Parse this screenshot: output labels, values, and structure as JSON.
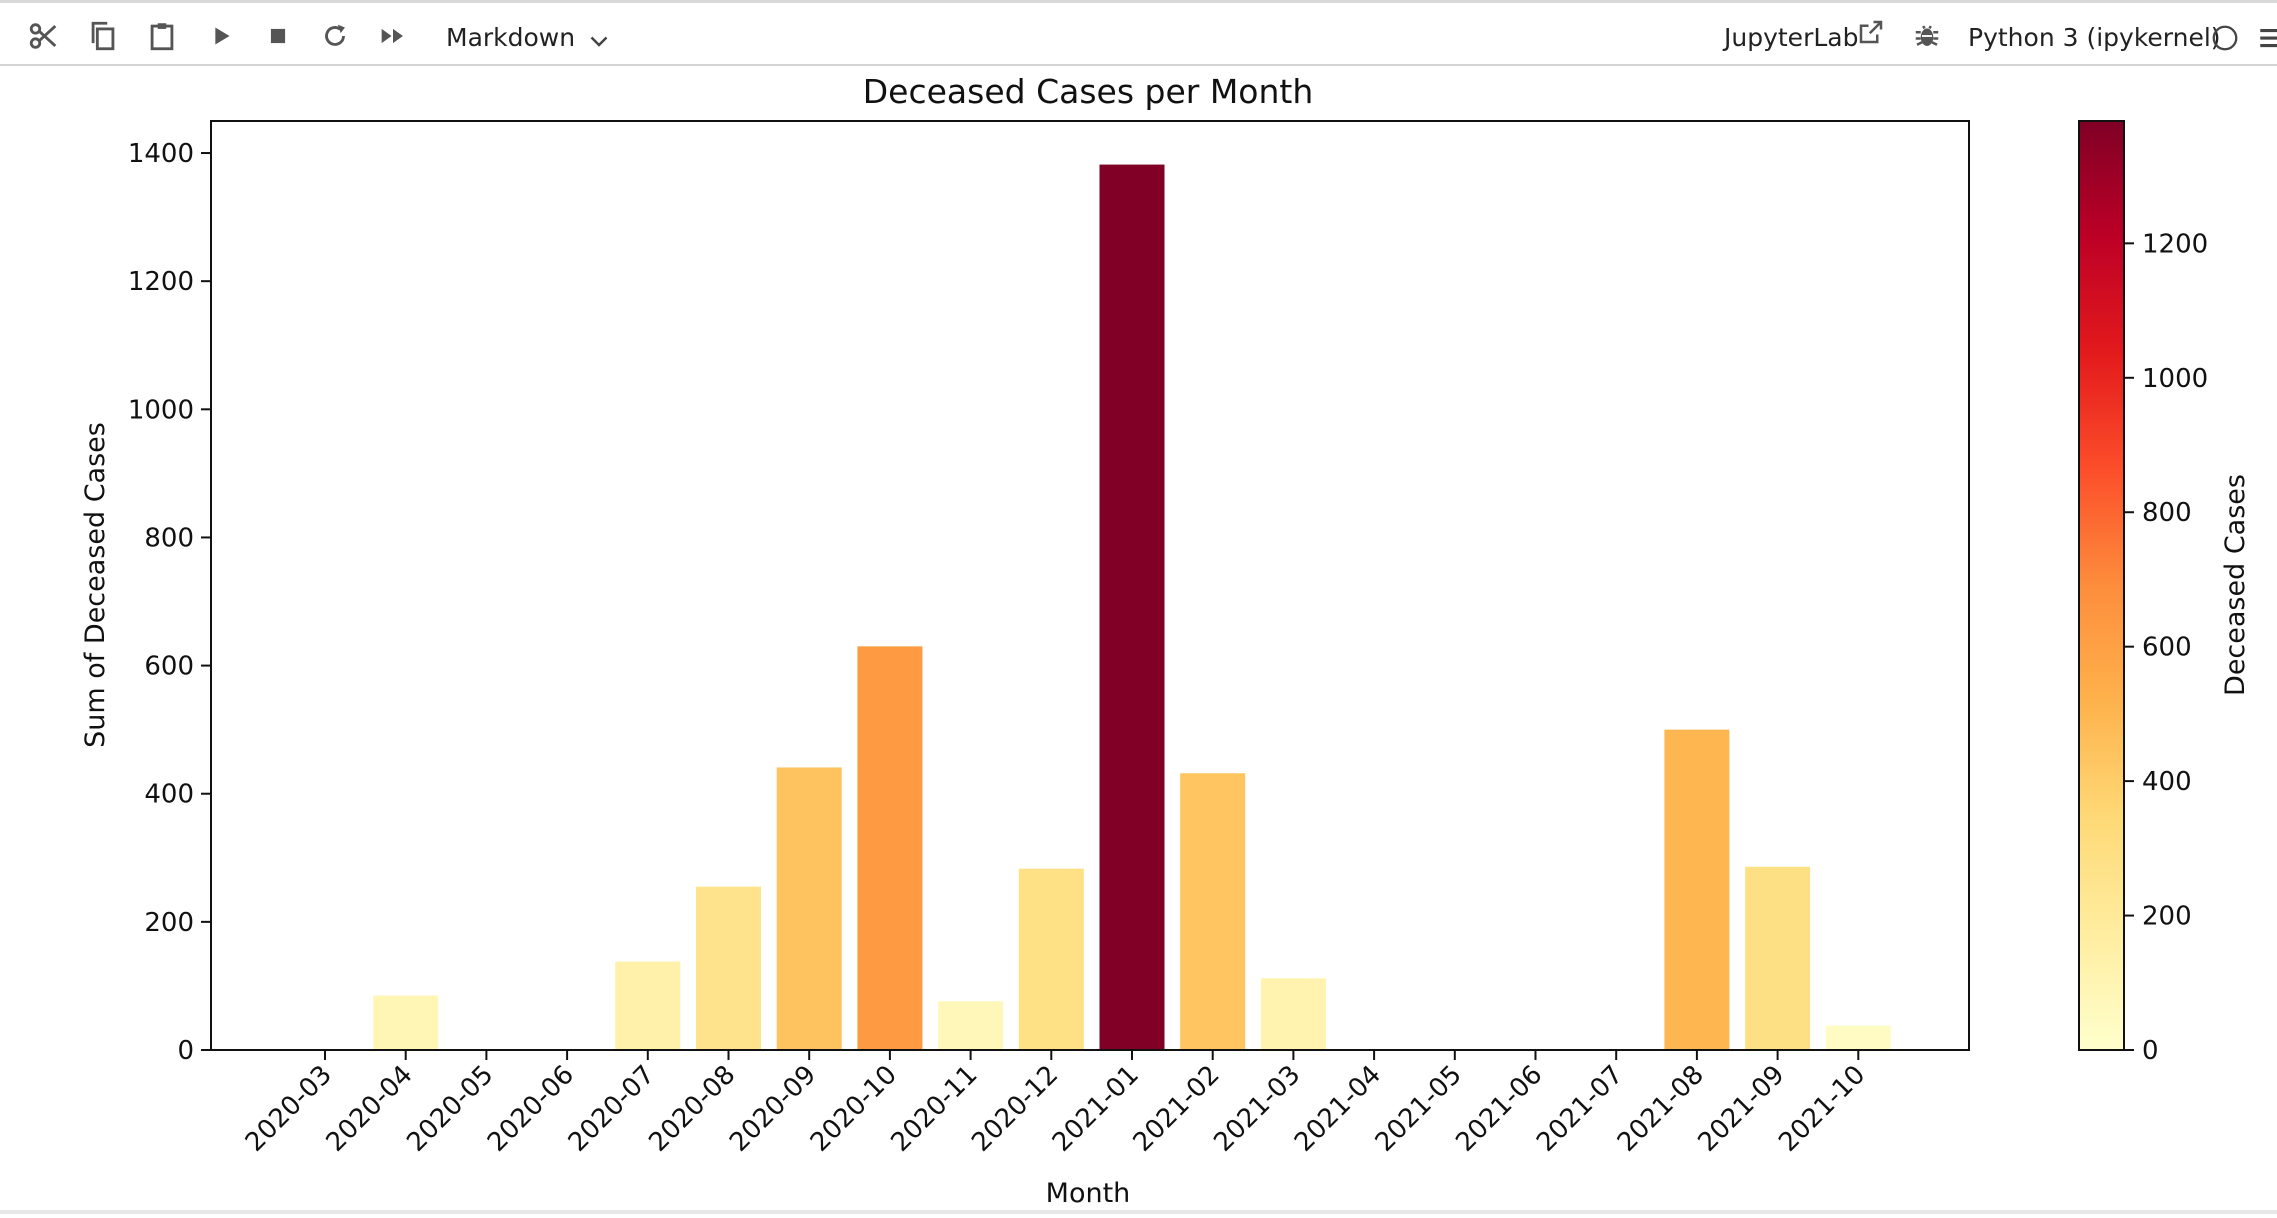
{
  "toolbar": {
    "icons": [
      "scissors-icon",
      "copy-icon",
      "paste-icon",
      "run-icon",
      "stop-icon",
      "restart-icon",
      "fast-forward-icon"
    ],
    "cell_type": "Markdown",
    "jupyterlab_label": "JupyterLab",
    "kernel_label": "Python 3 (ipykernel)"
  },
  "chart_data": {
    "type": "bar",
    "title": "Deceased Cases per Month",
    "xlabel": "Month",
    "ylabel": "Sum of Deceased Cases",
    "categories": [
      "2020-03",
      "2020-04",
      "2020-05",
      "2020-06",
      "2020-07",
      "2020-08",
      "2020-09",
      "2020-10",
      "2020-11",
      "2020-12",
      "2021-01",
      "2021-02",
      "2021-03",
      "2021-04",
      "2021-05",
      "2021-06",
      "2021-07",
      "2021-08",
      "2021-09",
      "2021-10"
    ],
    "values": [
      0,
      85,
      0,
      0,
      138,
      255,
      441,
      630,
      76,
      283,
      1382,
      432,
      112,
      0,
      0,
      0,
      0,
      500,
      286,
      38
    ],
    "ylim": [
      0,
      1450
    ],
    "yticks": [
      0,
      200,
      400,
      600,
      800,
      1000,
      1200,
      1400
    ],
    "grid": false,
    "colormap": "YlOrRd",
    "colorbar": {
      "label": "Deceased Cases",
      "range": [
        0,
        1382
      ],
      "ticks": [
        0,
        200,
        400,
        600,
        800,
        1000,
        1200
      ]
    }
  }
}
